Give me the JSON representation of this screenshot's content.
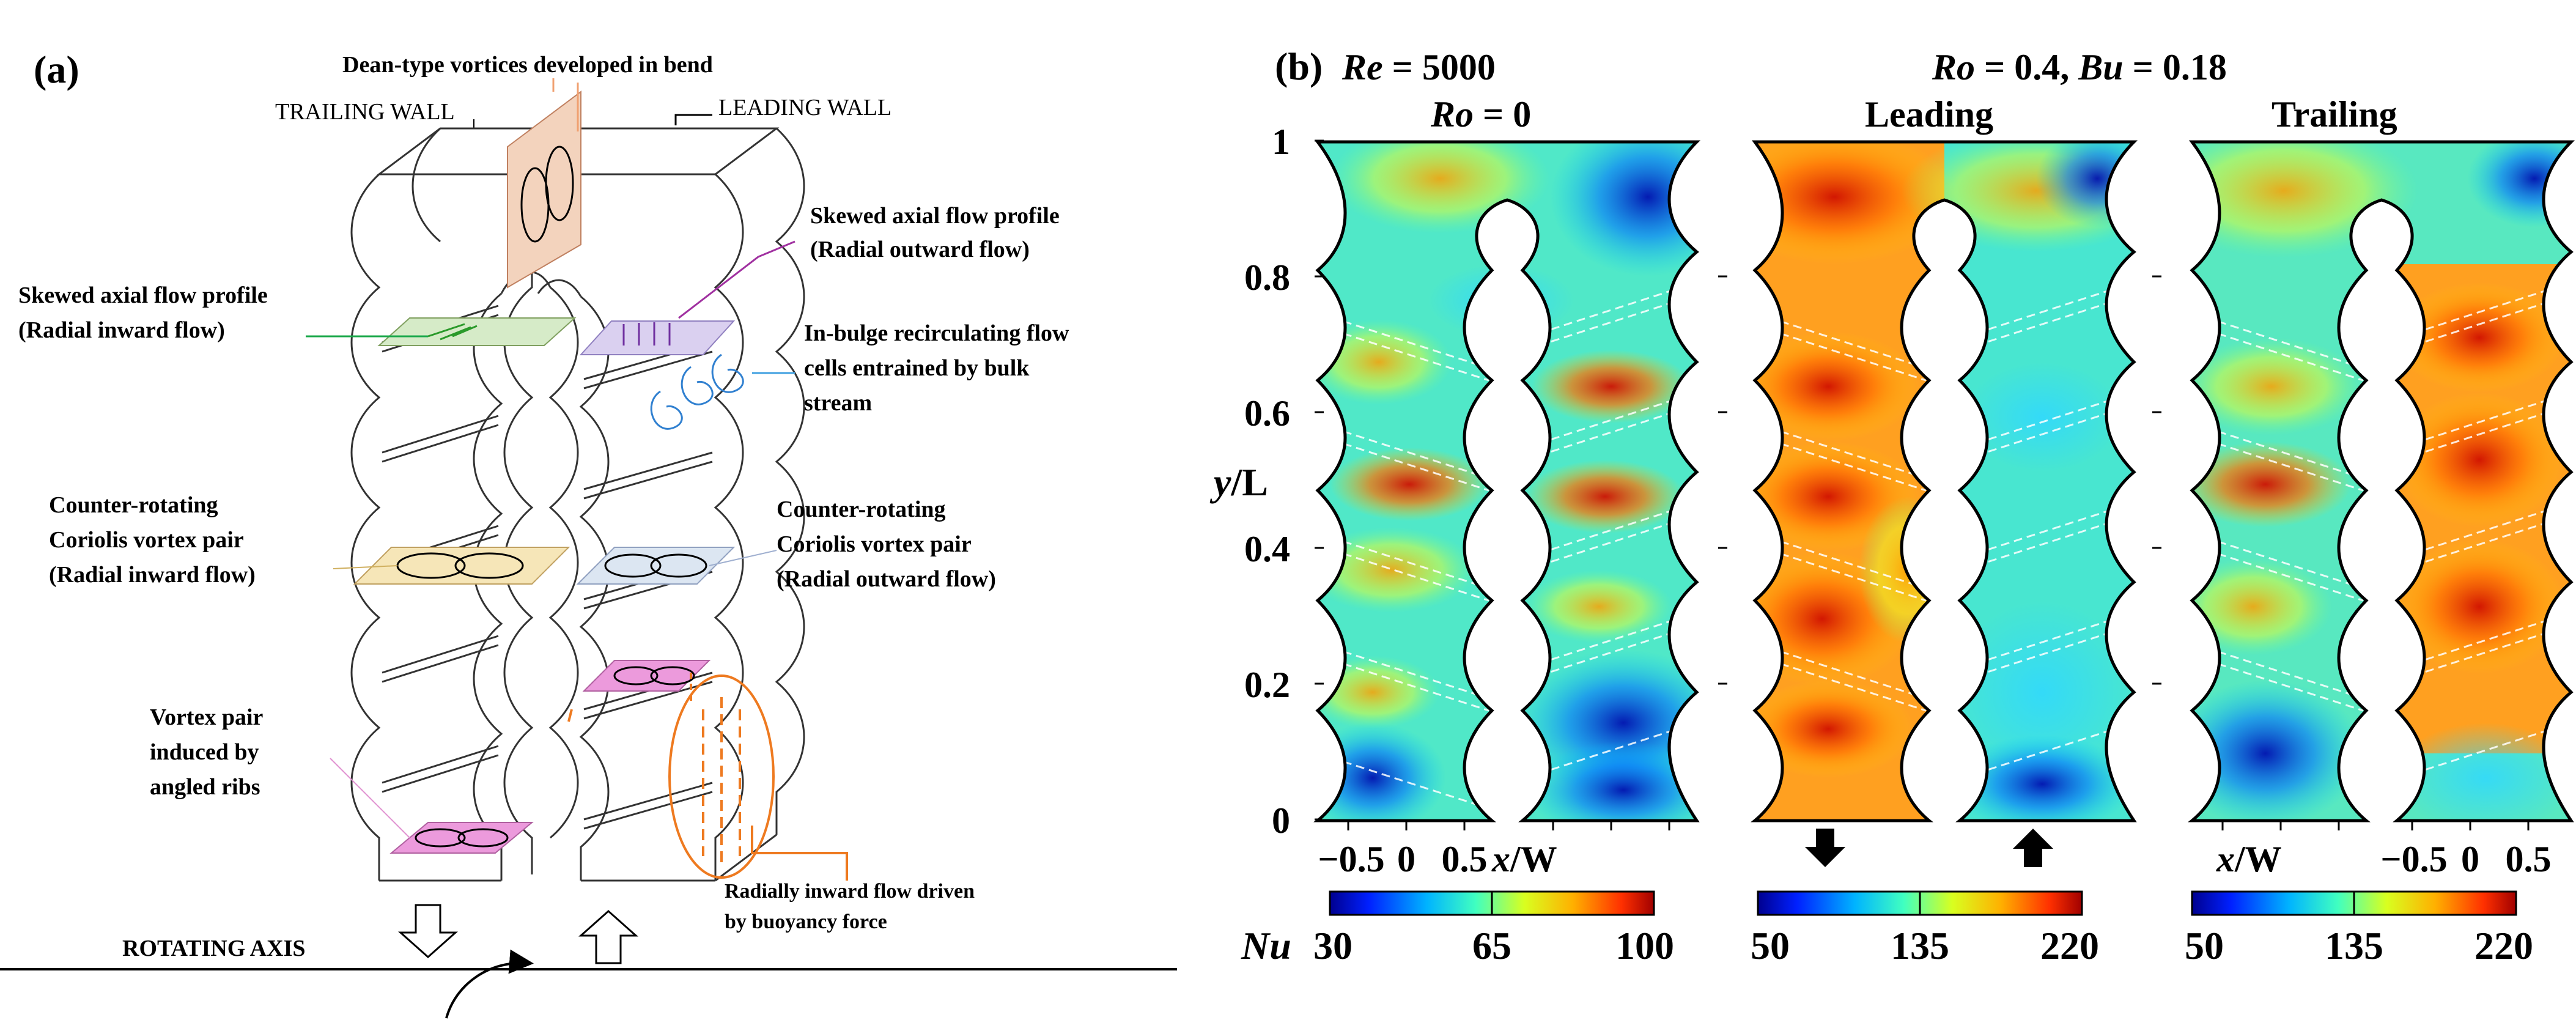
{
  "panel_a": {
    "label": "(a)",
    "dean_vortices": "Dean-type vortices developed in bend",
    "trailing_wall": "TRAILING WALL",
    "leading_wall": "LEADING WALL",
    "skewed_outward_l1": "Skewed axial flow profile",
    "skewed_outward_l2": "(Radial outward flow)",
    "skewed_inward_l1": "Skewed axial flow profile",
    "skewed_inward_l2": "(Radial inward flow)",
    "in_bulge_l1": "In-bulge recirculating flow",
    "in_bulge_l2": "cells entrained by bulk",
    "in_bulge_l3": "stream",
    "coriolis_in_l1": "Counter-rotating",
    "coriolis_in_l2": "Coriolis vortex pair",
    "coriolis_in_l3": "(Radial inward flow)",
    "coriolis_out_l1": "Counter-rotating",
    "coriolis_out_l2": "Coriolis vortex pair",
    "coriolis_out_l3": "(Radial outward flow)",
    "vortex_ribs_l1": "Vortex pair",
    "vortex_ribs_l2": "induced by",
    "vortex_ribs_l3": "angled ribs",
    "buoyancy_l1": "Radially inward flow driven",
    "buoyancy_l2": "by buoyancy force",
    "rotating_axis": "ROTATING AXIS"
  },
  "panel_b": {
    "label": "(b)",
    "re_var": "Re",
    "re_value": " = 5000",
    "ro_var": "Ro",
    "ro_zero": " = 0",
    "ro_var2": "Ro",
    "ro_value": " = 0.4, ",
    "bu_var": "Bu",
    "bu_value": " = 0.18",
    "title_leading": "Leading",
    "title_trailing": "Trailing",
    "y_axis": {
      "var": "y",
      "unit": "/L",
      "ticks": [
        "0",
        "0.2",
        "0.4",
        "0.6",
        "0.8",
        "1"
      ]
    },
    "x_axis_left": {
      "ticks": [
        "−0.5",
        "0",
        "0.5"
      ],
      "var": "x",
      "unit": "/W"
    },
    "x_axis_right": {
      "var": "x",
      "unit": "/W",
      "ticks": [
        "−0.5",
        "0",
        "0.5"
      ]
    },
    "colorbars": [
      {
        "prefix": "Nu",
        "ticks": [
          "30",
          "65",
          "100"
        ]
      },
      {
        "prefix": "",
        "ticks": [
          "50",
          "135",
          "220"
        ]
      },
      {
        "prefix": "",
        "ticks": [
          "50",
          "135",
          "220"
        ]
      }
    ],
    "colormap": [
      "#00008f",
      "#0040ff",
      "#00c8ff",
      "#40ffc0",
      "#ffff00",
      "#ff7000",
      "#c00000"
    ]
  }
}
